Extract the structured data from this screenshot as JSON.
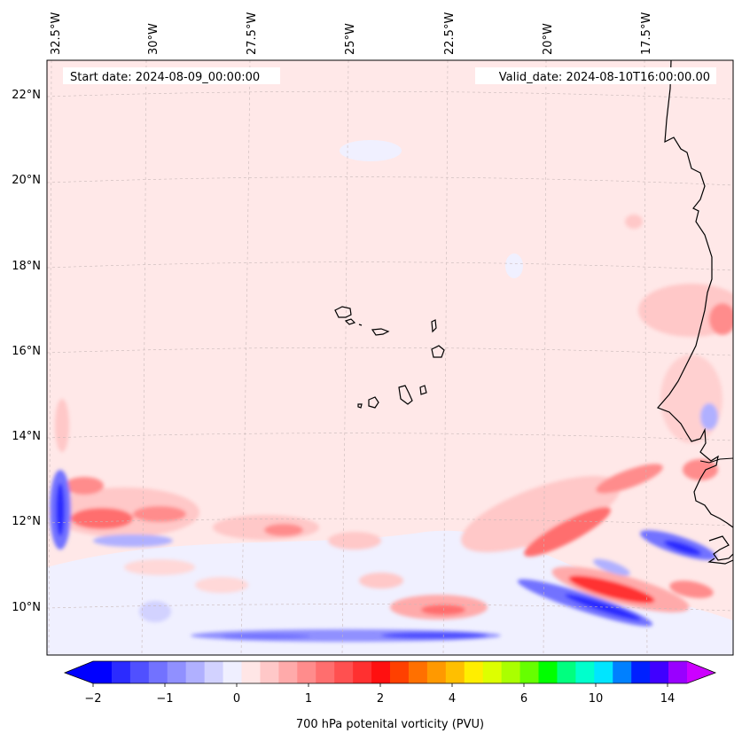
{
  "map": {
    "start_date": "Start date: 2024-08-09_00:00:00",
    "valid_date": "Valid_date: 2024-08-10T16:00:00.00",
    "lon_labels": [
      "32.5°W",
      "30°W",
      "27.5°W",
      "25°W",
      "22.5°W",
      "20°W",
      "17.5°W"
    ],
    "lat_labels": [
      "22°N",
      "20°N",
      "18°N",
      "16°N",
      "14°N",
      "12°N",
      "10°N"
    ]
  },
  "colorbar": {
    "title": "700 hPa potenital vorticity (PVU)",
    "tick_labels": [
      "−2",
      "−1",
      "0",
      "1",
      "2",
      "4",
      "6",
      "10",
      "14"
    ],
    "colors": [
      "#0000ff",
      "#2b2bff",
      "#5050ff",
      "#7272ff",
      "#9090ff",
      "#b0b0ff",
      "#d2d2ff",
      "#efefff",
      "#ffe6e6",
      "#ffc8c8",
      "#ffaaaa",
      "#ff8c8c",
      "#ff6e6e",
      "#ff5050",
      "#ff3030",
      "#ff1010",
      "#ff4000",
      "#ff7000",
      "#ff9900",
      "#ffbf00",
      "#ffee00",
      "#ddff00",
      "#aaff00",
      "#66ff00",
      "#00ff00",
      "#00ff7f",
      "#00ffcc",
      "#00e5ff",
      "#0080ff",
      "#0020ff",
      "#4000ff",
      "#9900ff"
    ],
    "extend_low": "#0000ff",
    "extend_high": "#cc00ff"
  },
  "style": {
    "background_pv": "#ffe8e8",
    "coastline": "#000000"
  }
}
